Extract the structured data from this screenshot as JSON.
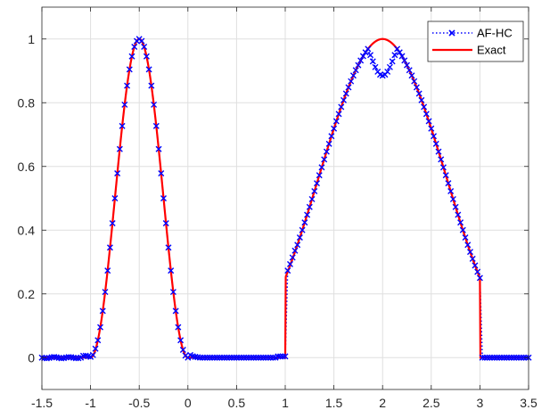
{
  "chart_data": {
    "type": "line",
    "xlim": [
      -1.5,
      3.5
    ],
    "ylim": [
      -0.1,
      1.1
    ],
    "xticks": [
      "-1.5",
      "-1",
      "-0.5",
      "0",
      "0.5",
      "1",
      "1.5",
      "2",
      "2.5",
      "3",
      "3.5"
    ],
    "yticks": [
      "0",
      "0.2",
      "0.4",
      "0.6",
      "0.8",
      "1"
    ],
    "grid": true,
    "legend_position": "top-right",
    "series": [
      {
        "name": "AF-HC",
        "style": "dotted-with-x-markers",
        "color": "#0000ff",
        "x_start": -1.5,
        "x_step": 0.025,
        "x_end": 3.5,
        "description": "numerical approximation sampled on a uniform grid"
      },
      {
        "name": "Exact",
        "style": "solid",
        "color": "#ff0000",
        "pieces": [
          {
            "x": [
              -1.5,
              -1
            ],
            "shape": "zero"
          },
          {
            "x": [
              -1,
              0
            ],
            "shape": "bump",
            "peak_x": -0.5,
            "peak_y": 1
          },
          {
            "x": [
              0,
              1
            ],
            "shape": "zero"
          },
          {
            "x": [
              1,
              2
            ],
            "shape": "cubic-spline-rise",
            "peak_x": 2,
            "peak_y": 1
          },
          {
            "x": [
              2,
              3
            ],
            "shape": "cubic-spline-fall"
          },
          {
            "x": [
              3,
              3.5
            ],
            "shape": "zero"
          }
        ]
      }
    ],
    "approximation_peak_at_2": 0.885
  }
}
